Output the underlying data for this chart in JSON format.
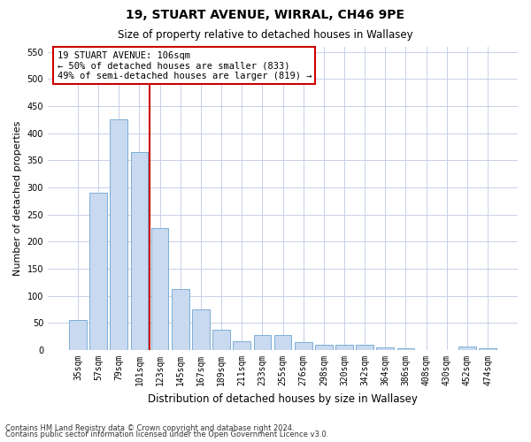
{
  "title": "19, STUART AVENUE, WIRRAL, CH46 9PE",
  "subtitle": "Size of property relative to detached houses in Wallasey",
  "xlabel": "Distribution of detached houses by size in Wallasey",
  "ylabel": "Number of detached properties",
  "footnote1": "Contains HM Land Registry data © Crown copyright and database right 2024.",
  "footnote2": "Contains public sector information licensed under the Open Government Licence v3.0.",
  "categories": [
    "35sqm",
    "57sqm",
    "79sqm",
    "101sqm",
    "123sqm",
    "145sqm",
    "167sqm",
    "189sqm",
    "211sqm",
    "233sqm",
    "255sqm",
    "276sqm",
    "298sqm",
    "320sqm",
    "342sqm",
    "364sqm",
    "386sqm",
    "408sqm",
    "430sqm",
    "452sqm",
    "474sqm"
  ],
  "values": [
    55,
    290,
    425,
    365,
    225,
    113,
    75,
    38,
    17,
    27,
    27,
    14,
    10,
    10,
    10,
    5,
    4,
    0,
    0,
    6,
    4
  ],
  "bar_color": "#c9d9f0",
  "bar_edge_color": "#7bafd4",
  "vline_x": 3.5,
  "vline_color": "#cc0000",
  "annotation_title": "19 STUART AVENUE: 106sqm",
  "annotation_line1": "← 50% of detached houses are smaller (833)",
  "annotation_line2": "49% of semi-detached houses are larger (819) →",
  "annotation_box_color": "#ffffff",
  "annotation_box_edge": "#cc0000",
  "ylim": [
    0,
    560
  ],
  "yticks": [
    0,
    50,
    100,
    150,
    200,
    250,
    300,
    350,
    400,
    450,
    500,
    550
  ],
  "background_color": "#ffffff",
  "grid_color": "#c8d0e8",
  "title_fontsize": 10,
  "subtitle_fontsize": 8.5,
  "ylabel_fontsize": 8,
  "xlabel_fontsize": 8.5,
  "tick_fontsize": 7,
  "annot_fontsize": 7.5,
  "footnote_fontsize": 6
}
